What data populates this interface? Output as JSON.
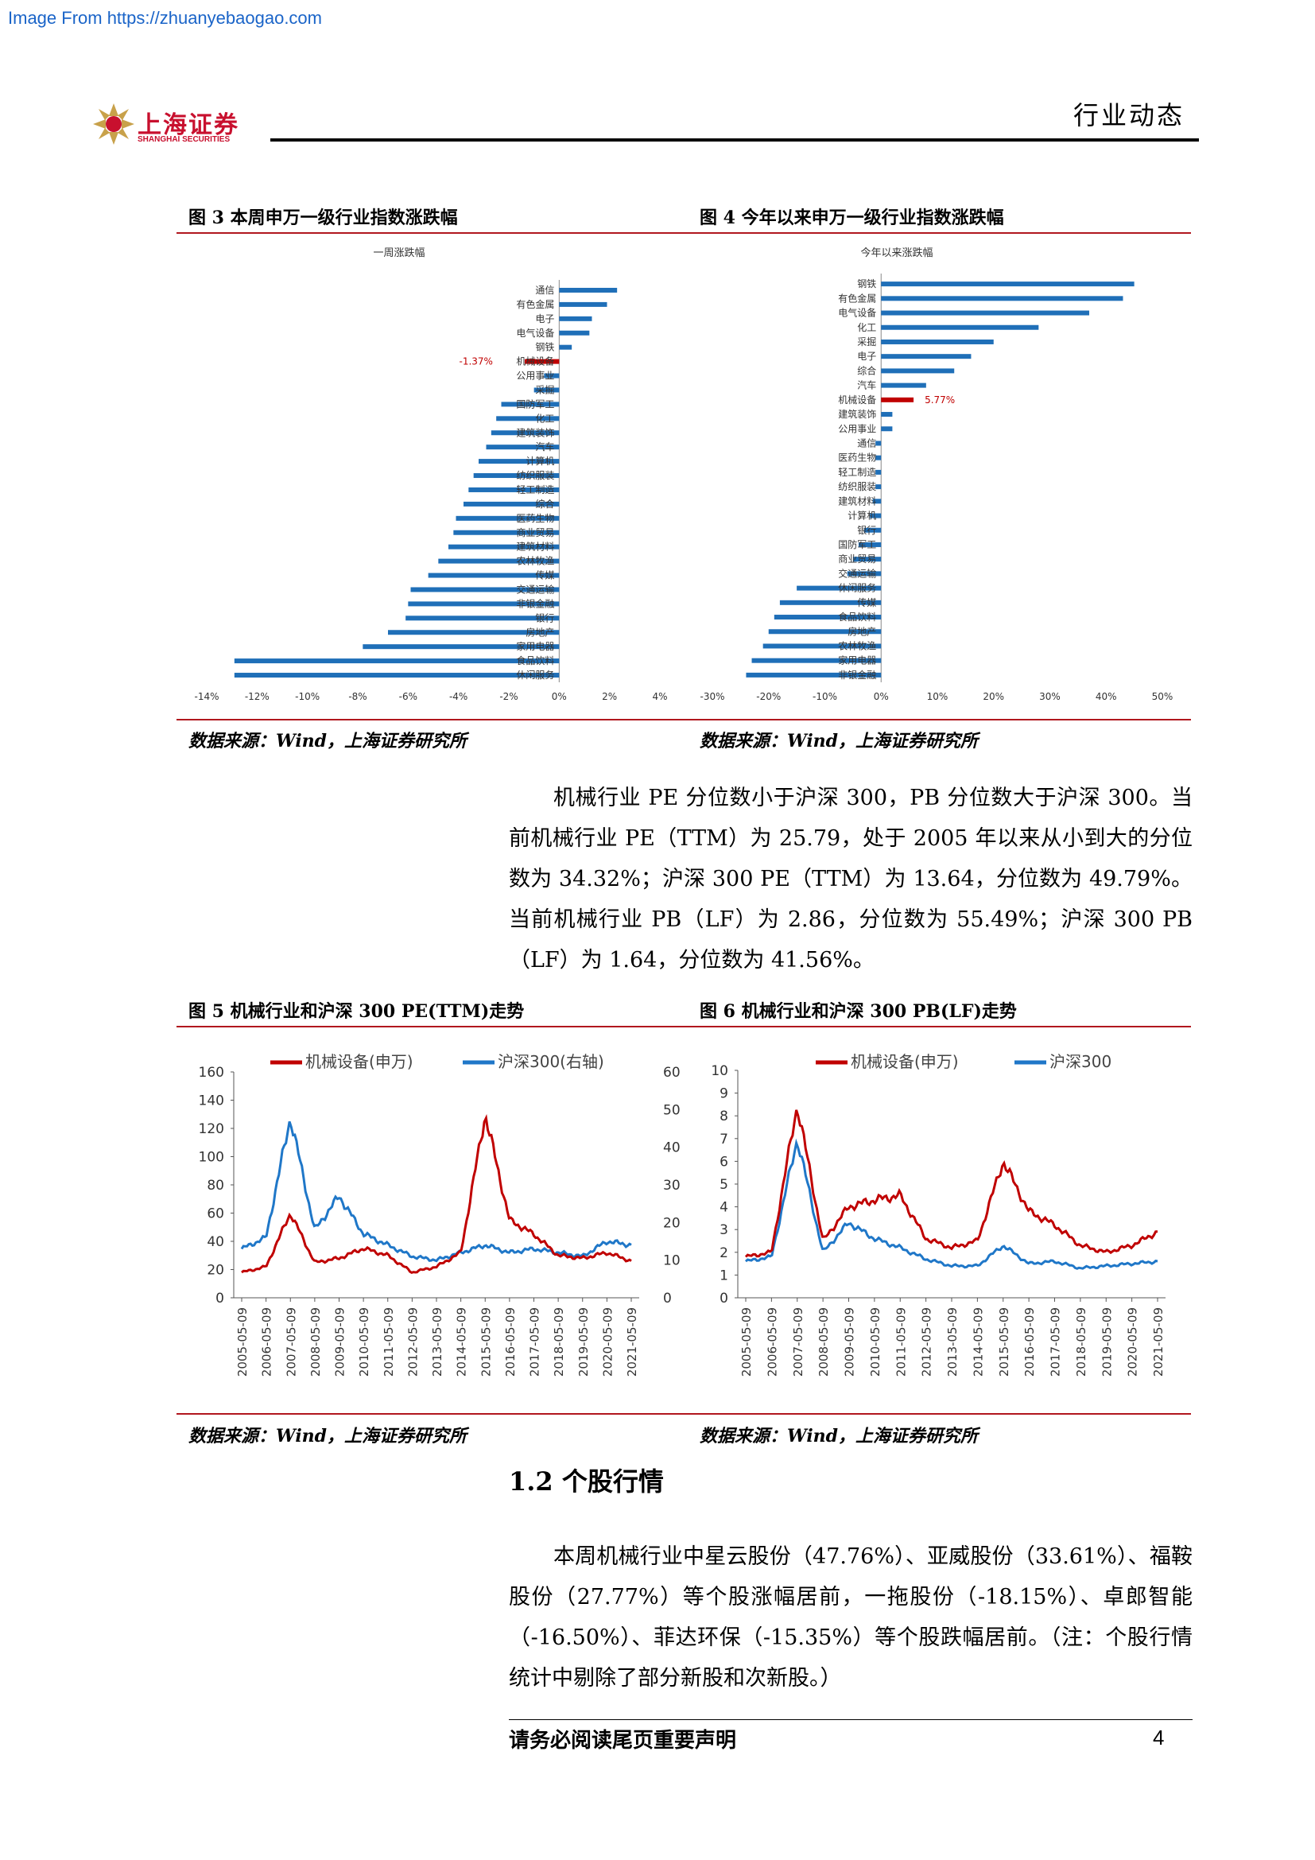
{
  "watermark": "Image From https://zhuanyebaogao.com",
  "logo": {
    "cn": "上海证券",
    "en": "SHANGHAI SECURITIES"
  },
  "header": {
    "title": "行业动态"
  },
  "figures": {
    "fig3_title": "图 3  本周申万一级行业指数涨跌幅",
    "fig4_title": "图 4  今年以来申万一级行业指数涨跌幅",
    "fig5_title": "图 5  机械行业和沪深 300 PE(TTM)走势",
    "fig6_title": "图 6  机械行业和沪深 300 PB(LF)走势",
    "source": "数据来源：Wind，上海证券研究所"
  },
  "paragraph1": "机械行业 PE 分位数小于沪深 300，PB 分位数大于沪深 300。当前机械行业 PE（TTM）为 25.79，处于 2005 年以来从小到大的分位数为 34.32%；沪深 300 PE（TTM）为 13.64，分位数为 49.79%。当前机械行业 PB（LF）为 2.86，分位数为 55.49%；沪深 300 PB（LF）为 1.64，分位数为 41.56%。",
  "section": {
    "heading": "1.2  个股行情"
  },
  "paragraph2": "本周机械行业中星云股份（47.76%）、亚威股份（33.61%）、福鞍股份（27.77%）等个股涨幅居前，一拖股份（-18.15%）、卓郎智能（-16.50%）、菲达环保（-15.35%）等个股跌幅居前。（注：个股行情统计中剔除了部分新股和次新股。）",
  "footer": {
    "note": "请务必阅读尾页重要声明",
    "page": "4"
  },
  "colors": {
    "bar_blue": "#1f6fb8",
    "highlight_red": "#c00000",
    "line_red": "#c00000",
    "line_blue": "#1f77c8",
    "rule_red": "#b1171e"
  },
  "chart_data": [
    {
      "type": "bar",
      "orientation": "horizontal",
      "title": "一周涨跌幅",
      "categories": [
        "通信",
        "有色金属",
        "电子",
        "电气设备",
        "钢铁",
        "机械设备",
        "公用事业",
        "采掘",
        "国防军工",
        "化工",
        "建筑装饰",
        "汽车",
        "计算机",
        "纺织服装",
        "轻工制造",
        "综合",
        "医药生物",
        "商业贸易",
        "建筑材料",
        "农林牧渔",
        "传媒",
        "交通运输",
        "非银金融",
        "银行",
        "房地产",
        "家用电器",
        "食品饮料",
        "休闲服务"
      ],
      "values": [
        2.3,
        1.9,
        1.3,
        1.2,
        0.5,
        -1.37,
        -0.6,
        -1.0,
        -2.3,
        -2.5,
        -2.7,
        -2.9,
        -3.2,
        -3.4,
        -3.6,
        -3.8,
        -4.1,
        -4.2,
        -4.4,
        -4.8,
        -5.2,
        -5.9,
        -6.0,
        -6.1,
        -6.8,
        -7.8,
        -12.9,
        -12.9
      ],
      "highlight": {
        "category": "机械设备",
        "label": "-1.37%"
      },
      "xticks": [
        "-14%",
        "-12%",
        "-10%",
        "-8%",
        "-6%",
        "-4%",
        "-2%",
        "0%",
        "2%",
        "4%"
      ],
      "xlim": [
        -14,
        4
      ]
    },
    {
      "type": "bar",
      "orientation": "horizontal",
      "title": "今年以来涨跌幅",
      "categories": [
        "钢铁",
        "有色金属",
        "电气设备",
        "化工",
        "采掘",
        "电子",
        "综合",
        "汽车",
        "机械设备",
        "建筑装饰",
        "公用事业",
        "通信",
        "医药生物",
        "轻工制造",
        "纺织服装",
        "建筑材料",
        "计算机",
        "银行",
        "国防军工",
        "商业贸易",
        "交通运输",
        "休闲服务",
        "传媒",
        "食品饮料",
        "房地产",
        "农林牧渔",
        "家用电器",
        "非银金融"
      ],
      "values": [
        45,
        43,
        37,
        28,
        20,
        16,
        13,
        8,
        5.77,
        2,
        2,
        -1,
        -1,
        -1,
        -1,
        -1.5,
        -2,
        -3,
        -4,
        -5,
        -6,
        -15,
        -18,
        -19,
        -20,
        -21,
        -23,
        -24
      ],
      "highlight": {
        "category": "机械设备",
        "label": "5.77%"
      },
      "xticks": [
        "-30%",
        "-20%",
        "-10%",
        "0%",
        "10%",
        "20%",
        "30%",
        "40%",
        "50%"
      ],
      "xlim": [
        -30,
        50
      ]
    },
    {
      "type": "line",
      "series": [
        {
          "name": "机械设备(申万)",
          "axis": "left"
        },
        {
          "name": "沪深300(右轴)",
          "axis": "right"
        }
      ],
      "x": [
        "2005-05-09",
        "2006-05-09",
        "2007-05-09",
        "2008-05-09",
        "2009-05-09",
        "2010-05-09",
        "2011-05-09",
        "2012-05-09",
        "2013-05-09",
        "2014-05-09",
        "2015-05-09",
        "2016-05-09",
        "2017-05-09",
        "2018-05-09",
        "2019-05-09",
        "2020-05-09",
        "2021-05-09"
      ],
      "y_left_ticks": [
        "0",
        "20",
        "40",
        "60",
        "80",
        "100",
        "120",
        "140",
        "160"
      ],
      "y_right_ticks": [
        "0",
        "10",
        "20",
        "30",
        "40",
        "50",
        "60"
      ],
      "ylim_left": [
        0,
        160
      ],
      "ylim_right": [
        0,
        60
      ],
      "left_values": [
        18,
        22,
        60,
        25,
        28,
        35,
        30,
        18,
        22,
        32,
        130,
        55,
        45,
        30,
        28,
        32,
        26
      ],
      "right_values": [
        13,
        16,
        48,
        18,
        27,
        17,
        14,
        11,
        10,
        12,
        14,
        12,
        13,
        12,
        11,
        15,
        14
      ]
    },
    {
      "type": "line",
      "series": [
        {
          "name": "机械设备(申万)"
        },
        {
          "name": "沪深300"
        }
      ],
      "x": [
        "2005-05-09",
        "2006-05-09",
        "2007-05-09",
        "2008-05-09",
        "2009-05-09",
        "2010-05-09",
        "2011-05-09",
        "2012-05-09",
        "2013-05-09",
        "2014-05-09",
        "2015-05-09",
        "2016-05-09",
        "2017-05-09",
        "2018-05-09",
        "2019-05-09",
        "2020-05-09",
        "2021-05-09"
      ],
      "y_ticks": [
        "0",
        "1",
        "2",
        "3",
        "4",
        "5",
        "6",
        "7",
        "8",
        "9",
        "10"
      ],
      "ylim": [
        0,
        10
      ],
      "red_values": [
        1.8,
        2.0,
        8.5,
        2.5,
        4.0,
        4.3,
        4.5,
        2.6,
        2.2,
        2.5,
        6.0,
        3.8,
        3.2,
        2.3,
        2.0,
        2.3,
        2.9
      ],
      "blue_values": [
        1.6,
        1.8,
        7.0,
        2.0,
        3.3,
        2.6,
        2.2,
        1.7,
        1.4,
        1.4,
        2.3,
        1.5,
        1.6,
        1.3,
        1.4,
        1.5,
        1.6
      ]
    }
  ]
}
